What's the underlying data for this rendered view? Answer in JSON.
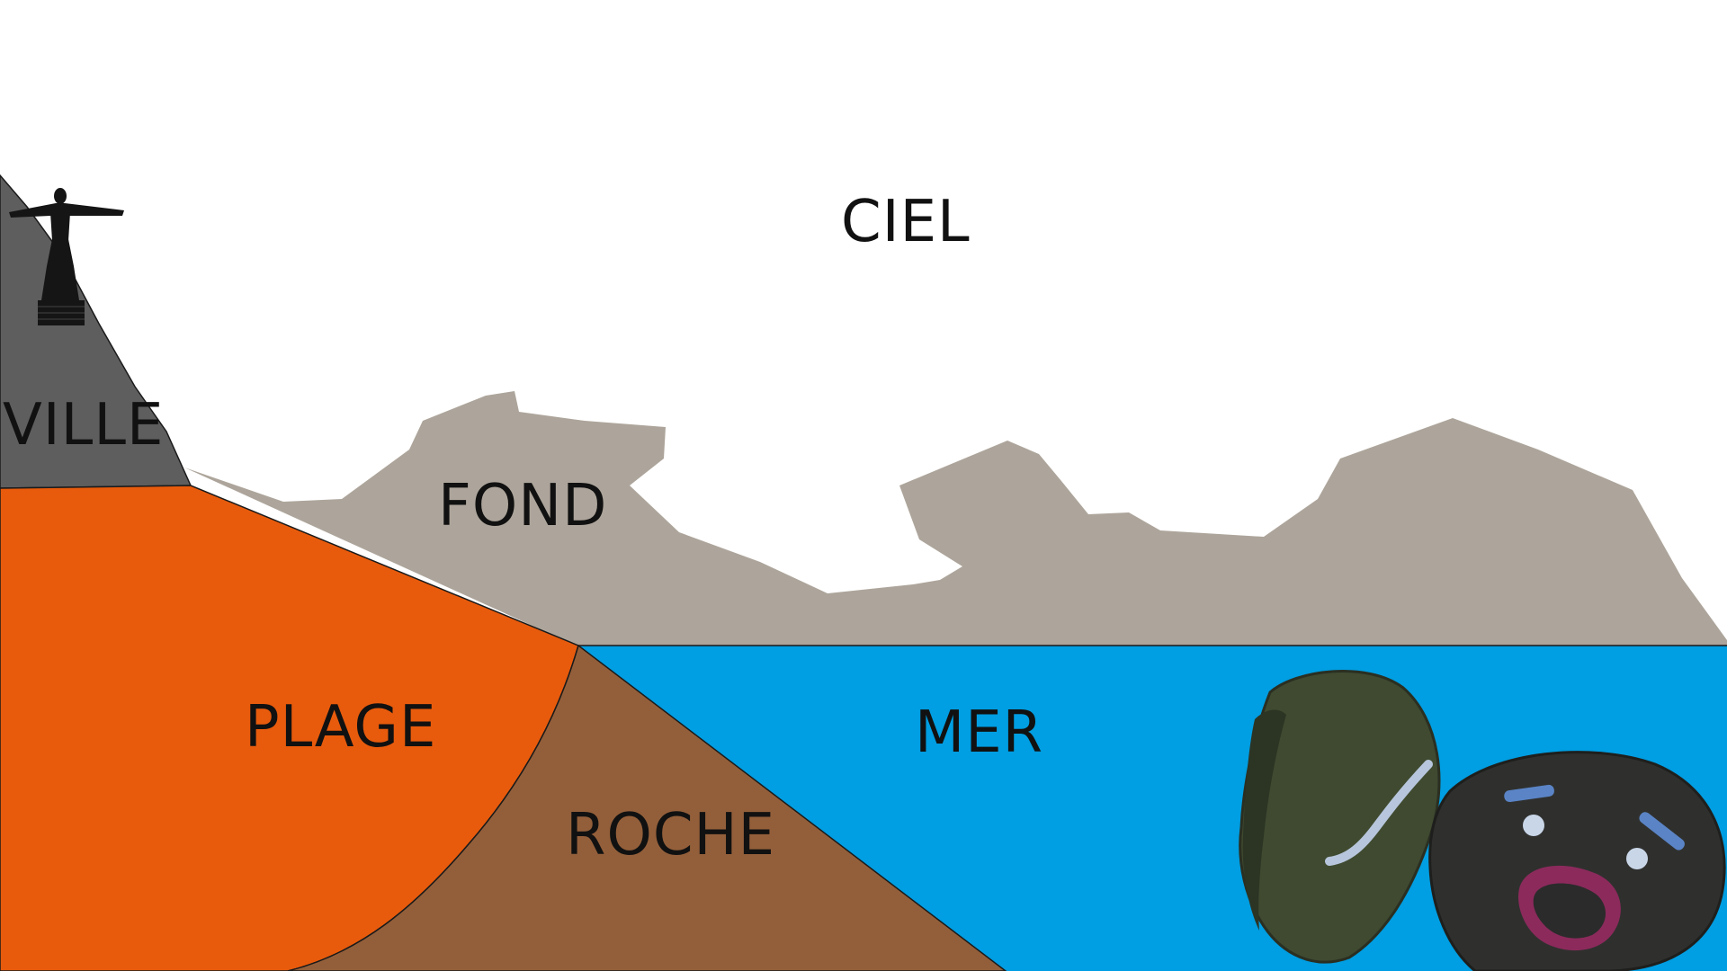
{
  "labels": {
    "sky": "CIEL",
    "city": "VILLE",
    "background": "FOND",
    "beach": "PLAGE",
    "rock": "ROCHE",
    "sea": "MER"
  },
  "colors": {
    "sky": "#ffffff",
    "city": "#5e5e5e",
    "background": "#ada59b",
    "beach": "#e85b0c",
    "rock": "#935f3a",
    "sea": "#009ee2",
    "outline": "#1a1a1a",
    "stone": "#3f4a30",
    "stone_dark": "#2f302e",
    "stone_accent": "#5a84c6",
    "mouth": "#8c2a5c"
  },
  "icons": {
    "statue": "christ-statue-icon",
    "stones": "stone-characters-icon"
  }
}
